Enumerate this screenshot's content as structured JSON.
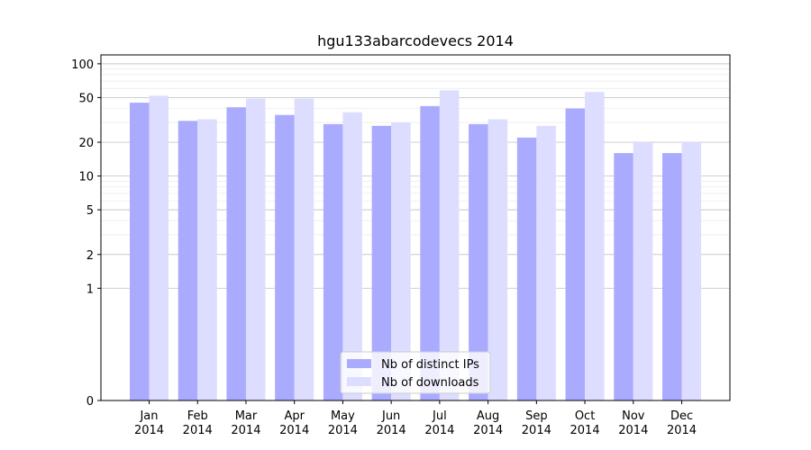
{
  "chart_data": {
    "type": "bar",
    "title": "hgu133abarcodevecs 2014",
    "xlabel": "",
    "ylabel": "",
    "yscale": "symlog",
    "ylim": [
      0,
      120
    ],
    "yticks": [
      0,
      1,
      2,
      5,
      10,
      20,
      50,
      100
    ],
    "grid": true,
    "legend_position": "bottom-center",
    "categories": [
      "Jan\n2014",
      "Feb\n2014",
      "Mar\n2014",
      "Apr\n2014",
      "May\n2014",
      "Jun\n2014",
      "Jul\n2014",
      "Aug\n2014",
      "Sep\n2014",
      "Oct\n2014",
      "Nov\n2014",
      "Dec\n2014"
    ],
    "series": [
      {
        "name": "Nb of distinct IPs",
        "color": "#aaaaff",
        "values": [
          45,
          31,
          41,
          35,
          29,
          28,
          42,
          29,
          22,
          40,
          16,
          16
        ]
      },
      {
        "name": "Nb of downloads",
        "color": "#ddddff",
        "values": [
          52,
          32,
          49,
          49,
          37,
          30,
          58,
          32,
          28,
          56,
          20,
          20
        ]
      }
    ]
  }
}
